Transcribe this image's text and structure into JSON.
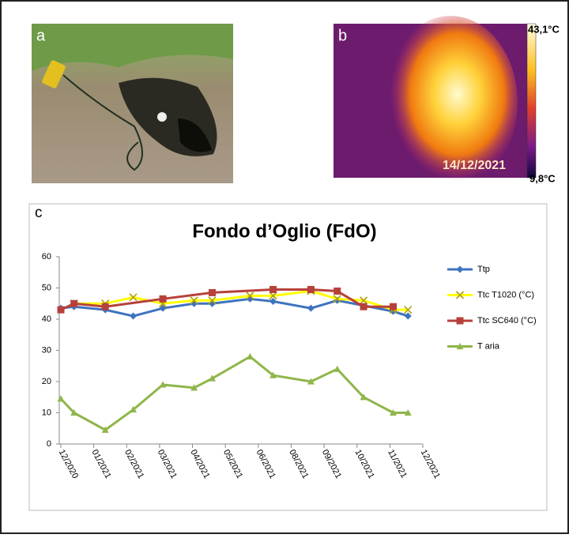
{
  "panels": {
    "a": {
      "label": "a"
    },
    "b": {
      "label": "b",
      "max_label": "43,1°C",
      "min_label": "9,8°C",
      "date": "14/12/2021"
    },
    "c": {
      "label": "c"
    }
  },
  "chart_data": {
    "type": "line",
    "title": "Fondo d’Oglio (FdO)",
    "xlim": [
      0,
      11
    ],
    "xticks": [
      {
        "value": 0,
        "label": "12/2020"
      },
      {
        "value": 1,
        "label": "01/2021"
      },
      {
        "value": 2,
        "label": "02/2021"
      },
      {
        "value": 3,
        "label": "03/2021"
      },
      {
        "value": 4,
        "label": "04/2021"
      },
      {
        "value": 5,
        "label": "05/2021"
      },
      {
        "value": 6,
        "label": "06/2021"
      },
      {
        "value": 7,
        "label": "08/2021"
      },
      {
        "value": 8,
        "label": "09/2021"
      },
      {
        "value": 9,
        "label": "10/2021"
      },
      {
        "value": 10,
        "label": "11/2021"
      },
      {
        "value": 11,
        "label": "12/2021"
      }
    ],
    "ylim": [
      0,
      60
    ],
    "yticks": [
      0,
      10,
      20,
      30,
      40,
      50,
      60
    ],
    "grid": false,
    "legend": "right",
    "series": [
      {
        "name": "Ttp",
        "color": "#3f73c0",
        "marker": "diamond",
        "x": [
          0,
          0.4,
          1.35,
          2.2,
          3.1,
          4.05,
          4.6,
          5.75,
          6.45,
          7.6,
          8.4,
          10.1,
          10.55
        ],
        "values": [
          43.5,
          44,
          43,
          41,
          43.5,
          45,
          45,
          46.5,
          45.7,
          43.5,
          46,
          42.5,
          41
        ]
      },
      {
        "name": "Ttc T1020 (°C)",
        "color": "#ffff00",
        "marker": "x",
        "x": [
          0.4,
          1.35,
          2.2,
          3.1,
          4.05,
          4.6,
          5.75,
          6.45,
          7.6,
          8.4,
          9.2,
          10.1,
          10.55
        ],
        "values": [
          45,
          45,
          47,
          45,
          46,
          46,
          47.5,
          47.5,
          49,
          46.5,
          46,
          43,
          43
        ]
      },
      {
        "name": "Ttc SC640 (°C)",
        "color": "#b7413a",
        "marker": "square",
        "x": [
          0,
          0.4,
          1.35,
          3.1,
          4.6,
          6.45,
          7.6,
          8.4,
          9.2,
          10.1
        ],
        "values": [
          43,
          45,
          44,
          46.5,
          48.5,
          49.5,
          49.5,
          49,
          44,
          44
        ]
      },
      {
        "name": "T aria",
        "color": "#8fb64a",
        "marker": "triangle",
        "x": [
          0,
          0.4,
          1.35,
          2.2,
          3.1,
          4.05,
          4.6,
          5.75,
          6.45,
          7.6,
          8.4,
          9.2,
          10.1,
          10.55
        ],
        "values": [
          14.5,
          10,
          4.5,
          11,
          19,
          18,
          21,
          28,
          22,
          20,
          24,
          15,
          10,
          10
        ]
      }
    ]
  }
}
